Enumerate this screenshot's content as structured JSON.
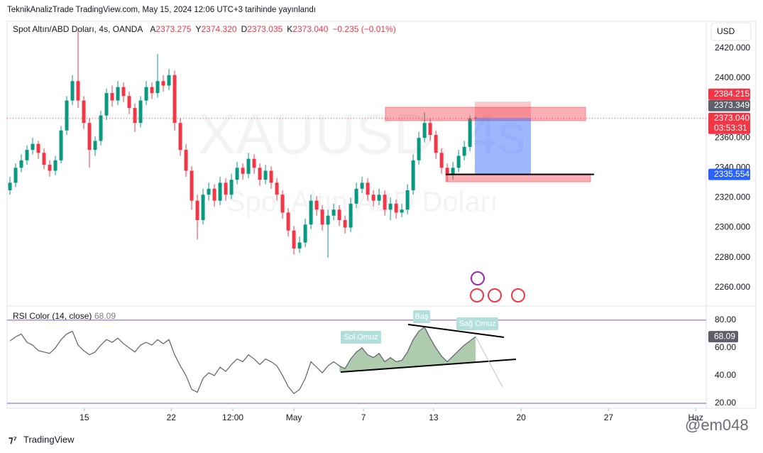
{
  "header": {
    "published": "TeknikAnalizTrade TradingView.com, May 15, 2024 12:06 UTC+3 tarihinde yayınlandı",
    "logo": "TradingView",
    "user": "@em048"
  },
  "chart_data": [
    {
      "type": "candlestick",
      "title": "Spot Altın/ABD Doları, 4s, OANDA",
      "watermark": "XAUUSD, 4s",
      "watermark_subtitle": "Spot Altın/ABD Doları",
      "currency": "USD",
      "ohlc_letters": [
        "A",
        "Y",
        "D",
        "K"
      ],
      "ohlc_labels": [
        "2373.275",
        "2374.320",
        "2373.035",
        "2373.040"
      ],
      "change": "−0.235 (−0.01%)",
      "countdown": "03:53:31",
      "up_color": "#089981",
      "down_color": "#f23645",
      "candles": [
        [
          2325,
          2334,
          2322,
          2330
        ],
        [
          2330,
          2343,
          2327,
          2340
        ],
        [
          2340,
          2349,
          2337,
          2345
        ],
        [
          2345,
          2355,
          2342,
          2352
        ],
        [
          2352,
          2360,
          2349,
          2356
        ],
        [
          2356,
          2358,
          2346,
          2350
        ],
        [
          2350,
          2353,
          2339,
          2342
        ],
        [
          2342,
          2345,
          2334,
          2338
        ],
        [
          2338,
          2348,
          2335,
          2345
        ],
        [
          2345,
          2368,
          2343,
          2365
        ],
        [
          2365,
          2388,
          2362,
          2385
        ],
        [
          2385,
          2402,
          2382,
          2398
        ],
        [
          2398,
          2432,
          2380,
          2385
        ],
        [
          2385,
          2388,
          2366,
          2370
        ],
        [
          2370,
          2373,
          2340,
          2352
        ],
        [
          2352,
          2361,
          2348,
          2358
        ],
        [
          2358,
          2378,
          2355,
          2375
        ],
        [
          2375,
          2393,
          2372,
          2390
        ],
        [
          2390,
          2395,
          2381,
          2385
        ],
        [
          2385,
          2398,
          2382,
          2394
        ],
        [
          2394,
          2397,
          2384,
          2388
        ],
        [
          2388,
          2391,
          2376,
          2380
        ],
        [
          2380,
          2383,
          2364,
          2370
        ],
        [
          2370,
          2388,
          2367,
          2385
        ],
        [
          2385,
          2398,
          2382,
          2394
        ],
        [
          2394,
          2397,
          2386,
          2390
        ],
        [
          2390,
          2416,
          2387,
          2398
        ],
        [
          2398,
          2402,
          2391,
          2395
        ],
        [
          2395,
          2406,
          2392,
          2402
        ],
        [
          2402,
          2405,
          2365,
          2370
        ],
        [
          2370,
          2373,
          2348,
          2352
        ],
        [
          2352,
          2356,
          2334,
          2338
        ],
        [
          2338,
          2341,
          2312,
          2318
        ],
        [
          2318,
          2322,
          2292,
          2305
        ],
        [
          2305,
          2326,
          2302,
          2322
        ],
        [
          2322,
          2330,
          2318,
          2326
        ],
        [
          2326,
          2329,
          2314,
          2318
        ],
        [
          2318,
          2334,
          2315,
          2330
        ],
        [
          2330,
          2333,
          2318,
          2322
        ],
        [
          2322,
          2336,
          2319,
          2332
        ],
        [
          2332,
          2344,
          2329,
          2340
        ],
        [
          2340,
          2343,
          2332,
          2336
        ],
        [
          2336,
          2350,
          2333,
          2346
        ],
        [
          2346,
          2349,
          2336,
          2340
        ],
        [
          2340,
          2343,
          2328,
          2332
        ],
        [
          2332,
          2342,
          2329,
          2338
        ],
        [
          2338,
          2341,
          2326,
          2330
        ],
        [
          2330,
          2333,
          2318,
          2322
        ],
        [
          2322,
          2325,
          2306,
          2310
        ],
        [
          2310,
          2313,
          2294,
          2298
        ],
        [
          2298,
          2301,
          2282,
          2286
        ],
        [
          2286,
          2294,
          2283,
          2290
        ],
        [
          2290,
          2306,
          2287,
          2302
        ],
        [
          2302,
          2322,
          2299,
          2318
        ],
        [
          2318,
          2321,
          2308,
          2312
        ],
        [
          2312,
          2315,
          2298,
          2302
        ],
        [
          2302,
          2312,
          2280,
          2308
        ],
        [
          2308,
          2316,
          2305,
          2312
        ],
        [
          2312,
          2315,
          2301,
          2305
        ],
        [
          2305,
          2308,
          2296,
          2300
        ],
        [
          2300,
          2320,
          2297,
          2316
        ],
        [
          2316,
          2330,
          2313,
          2326
        ],
        [
          2326,
          2334,
          2323,
          2330
        ],
        [
          2330,
          2333,
          2318,
          2322
        ],
        [
          2322,
          2325,
          2314,
          2318
        ],
        [
          2318,
          2326,
          2315,
          2322
        ],
        [
          2322,
          2325,
          2308,
          2312
        ],
        [
          2312,
          2320,
          2305,
          2316
        ],
        [
          2316,
          2319,
          2306,
          2310
        ],
        [
          2310,
          2316,
          2307,
          2312
        ],
        [
          2312,
          2329,
          2309,
          2325
        ],
        [
          2325,
          2349,
          2322,
          2345
        ],
        [
          2345,
          2364,
          2342,
          2360
        ],
        [
          2360,
          2377,
          2357,
          2370
        ],
        [
          2370,
          2373,
          2358,
          2362
        ],
        [
          2362,
          2365,
          2346,
          2350
        ],
        [
          2350,
          2353,
          2336,
          2340
        ],
        [
          2340,
          2343,
          2331,
          2335
        ],
        [
          2335,
          2344,
          2332,
          2340
        ],
        [
          2340,
          2352,
          2337,
          2348
        ],
        [
          2348,
          2358,
          2345,
          2354
        ],
        [
          2354,
          2375,
          2351,
          2373
        ],
        [
          2373.275,
          2374.32,
          2373.035,
          2373.04
        ]
      ],
      "xlim": [
        -0.5,
        122.6
      ],
      "xticks": [
        {
          "value": 13.1,
          "label": "15"
        },
        {
          "value": 28.4,
          "label": "22"
        },
        {
          "value": 39.25,
          "label": "12:00"
        },
        {
          "value": 50,
          "label": "May"
        },
        {
          "value": 62.25,
          "label": "7"
        },
        {
          "value": 74.6,
          "label": "13"
        },
        {
          "value": 90,
          "label": "20"
        },
        {
          "value": 105.4,
          "label": "27"
        },
        {
          "value": 120.75,
          "label": "Haz"
        }
      ],
      "ylim": [
        2248,
        2438
      ],
      "yticks": [
        {
          "value": 2260,
          "label": "2260.000"
        },
        {
          "value": 2280,
          "label": "2280.000"
        },
        {
          "value": 2300,
          "label": "2300.000"
        },
        {
          "value": 2320,
          "label": "2320.000"
        },
        {
          "value": 2340,
          "label": "2340.000"
        },
        {
          "value": 2360,
          "label": "2360.000"
        },
        {
          "value": 2400,
          "label": "2400.000"
        },
        {
          "value": 2420,
          "label": "2420.000"
        }
      ],
      "zones": [
        {
          "top": 2380.5,
          "bottom": 2371.5
        },
        {
          "top": 2335.9,
          "bottom": 2330.6
        }
      ],
      "position": {
        "stop": 2384.215,
        "entry": 2373.349,
        "target": 2335.554
      }
    },
    {
      "type": "line",
      "title": "RSI Color (14, close)",
      "color": "#5d606b",
      "values": [
        65,
        68,
        70,
        64,
        62,
        58,
        57,
        56,
        60,
        66,
        70,
        72,
        62,
        58,
        55,
        57,
        62,
        66,
        64,
        67,
        63,
        60,
        57,
        62,
        64,
        62,
        66,
        63,
        66,
        55,
        47,
        40,
        30,
        28,
        38,
        42,
        40,
        46,
        43,
        48,
        52,
        50,
        55,
        52,
        48,
        52,
        50,
        47,
        40,
        32,
        27,
        30,
        38,
        50,
        46,
        42,
        47,
        50,
        47,
        45,
        52,
        57,
        60,
        55,
        53,
        56,
        50,
        53,
        50,
        51,
        57,
        66,
        72,
        75,
        67,
        60,
        54,
        50,
        54,
        58,
        62,
        65,
        68.09
      ],
      "ylim": [
        16.4,
        89.7
      ],
      "yticks": [
        {
          "value": 20,
          "label": "20.00"
        },
        {
          "value": 40,
          "label": "40.00"
        },
        {
          "value": 60,
          "label": "60.00"
        },
        {
          "value": 80,
          "label": "80.00"
        }
      ],
      "bands": [
        80,
        20
      ],
      "annotations": [
        "Sol Omuz",
        "Baş",
        "Sağ Omuz"
      ]
    }
  ]
}
